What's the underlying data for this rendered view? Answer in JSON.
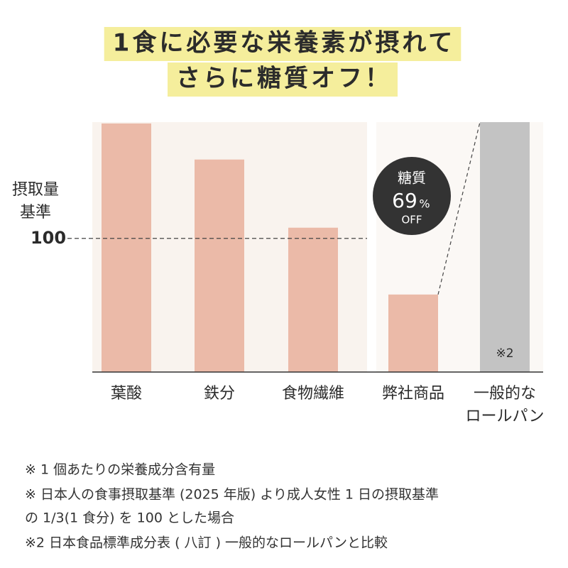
{
  "chart_data": {
    "type": "bar",
    "title_lines": [
      "1食に必要な栄養素が摂れて",
      "さらに糖質オフ！"
    ],
    "categories": [
      "葉酸",
      "鉄分",
      "食物繊維",
      "弊社商品",
      "一般的な\nロールパン"
    ],
    "values": [
      186,
      159,
      108,
      58,
      187
    ],
    "colors": [
      "#ebbaa8",
      "#ebbaa8",
      "#ebbaa8",
      "#ebbaa8",
      "#c3c3c3"
    ],
    "ylim": [
      0,
      187
    ],
    "reference": {
      "value": 100,
      "label": "100",
      "title": [
        "摂取量",
        "基準"
      ]
    },
    "badge": {
      "label": "糖質",
      "value": 69,
      "unit": "%",
      "suffix": "OFF"
    },
    "bar_note": "※2",
    "notes": [
      "※ 1 個あたりの栄養成分含有量",
      "※ 日本人の食事摂取基準 (2025 年版) より成人女性 1 日の摂取基準",
      "の 1/3(1 食分) を 100 とした場合",
      "※2 日本食品標準成分表 ( 八訂 ) 一般的なロールパンと比較"
    ]
  }
}
